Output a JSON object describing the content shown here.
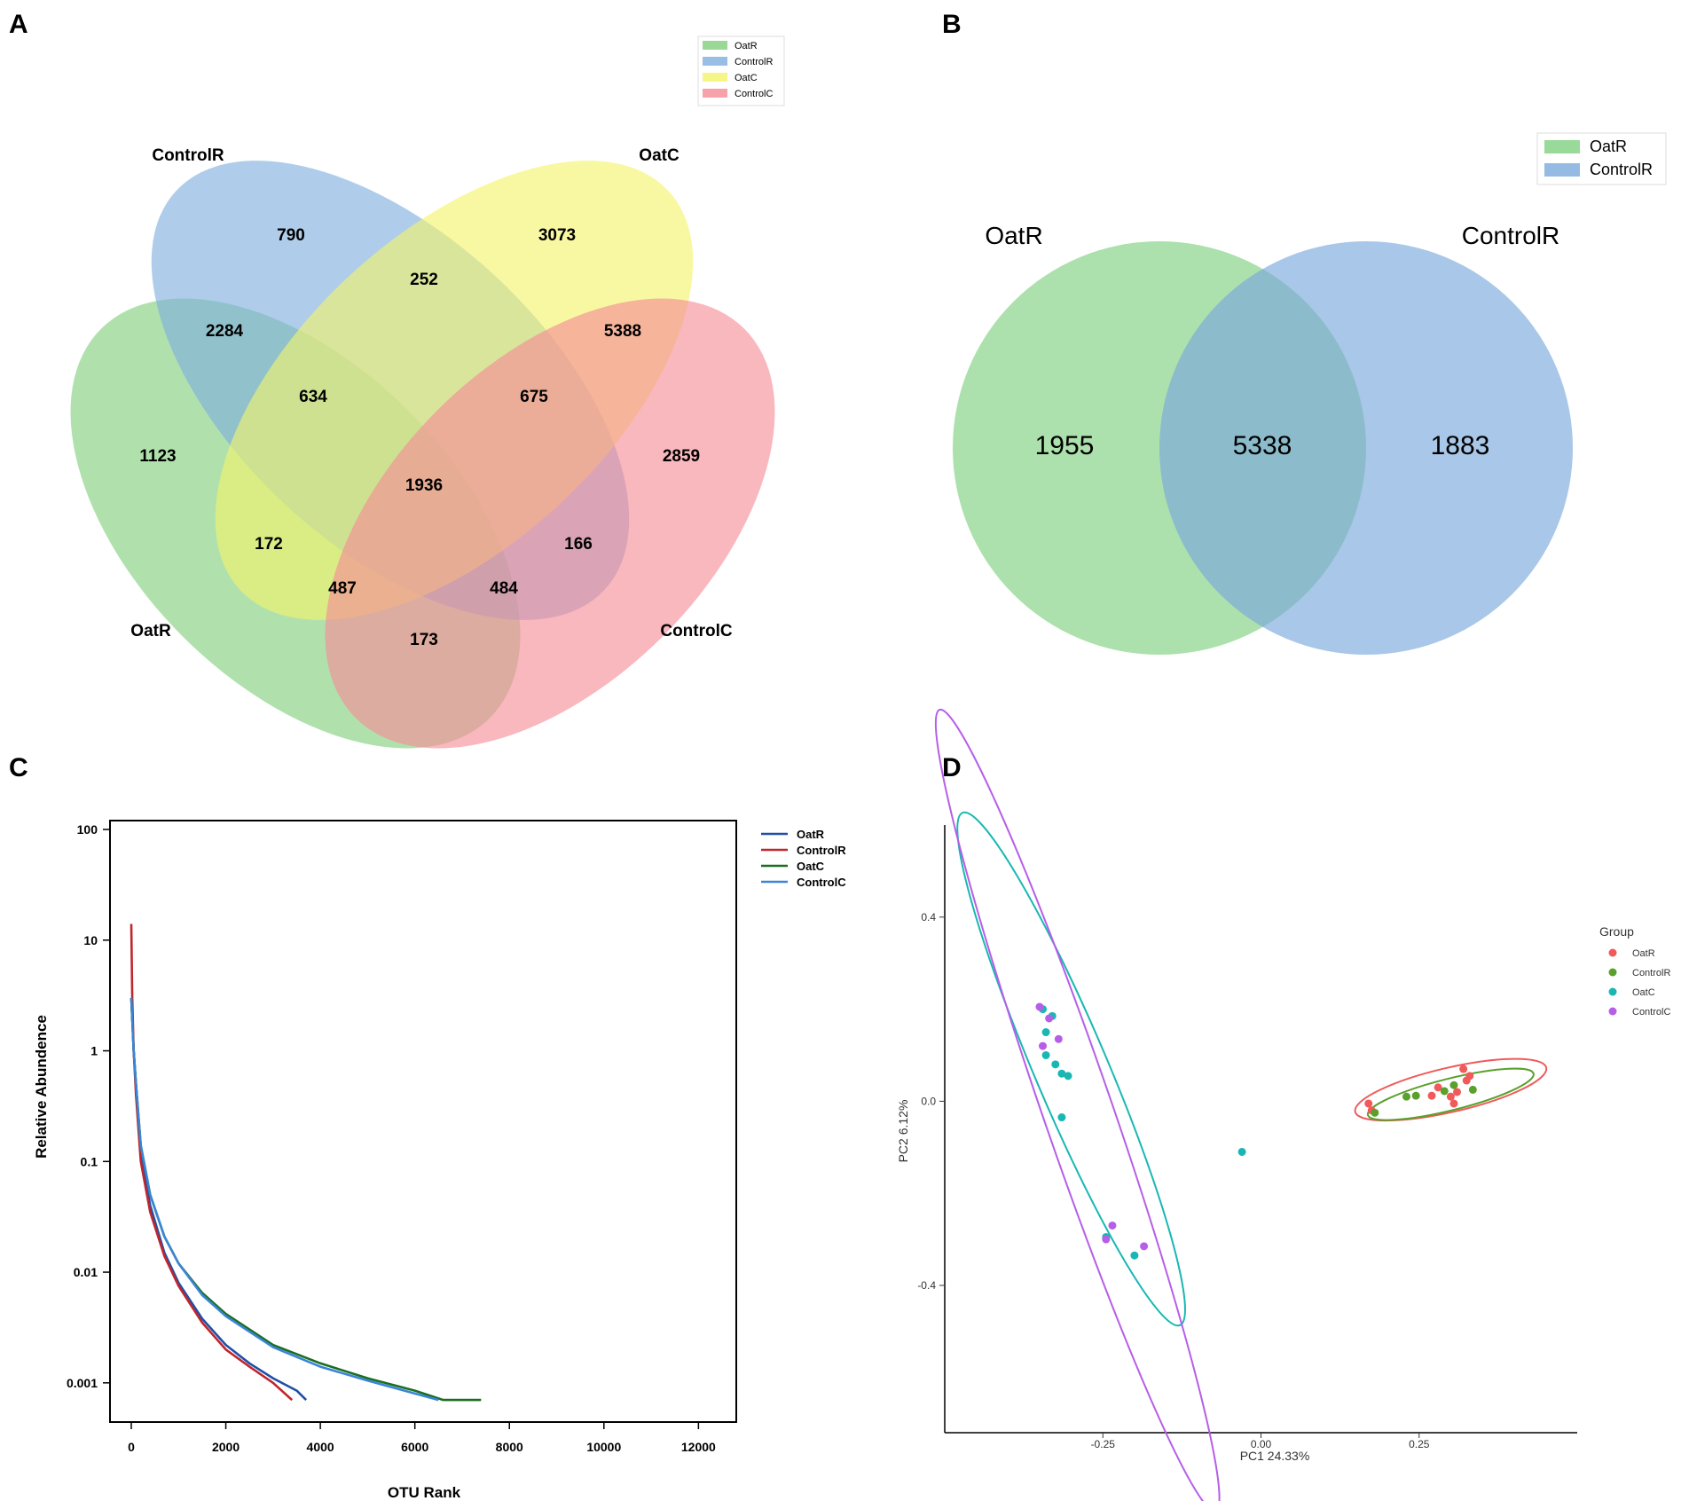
{
  "panels": {
    "A": {
      "letter": "A",
      "legend": [
        "OatR",
        "ControlR",
        "OatC",
        "ControlC"
      ],
      "colors": [
        "#7fcf7a",
        "#7eaedf",
        "#f3f36a",
        "#f58b96"
      ],
      "set_labels": [
        "ControlR",
        "OatC",
        "OatR",
        "ControlC"
      ],
      "counts": {
        "ControlR_only": "790",
        "OatC_only": "3073",
        "OatR_only": "1123",
        "ControlC_only": "2859",
        "ControlR_OatC": "252",
        "OatR_ControlR": "2284",
        "OatC_ControlC": "5388",
        "OatR_ControlR_OatC": "634",
        "ControlR_OatC_ControlC": "675",
        "all_four": "1936",
        "OatR_OatC": "172",
        "ControlR_ControlC": "166",
        "OatR_OatC_ControlC": "487",
        "OatR_ControlR_ControlC": "484",
        "OatR_ControlC": "173"
      }
    },
    "B": {
      "letter": "B",
      "legend": [
        "OatR",
        "ControlR"
      ],
      "colors": [
        "#7fd080",
        "#7ba9dc"
      ],
      "set_labels": [
        "OatR",
        "ControlR"
      ],
      "counts": {
        "OatR_only": "1955",
        "shared": "5338",
        "ControlR_only": "1883"
      }
    },
    "C": {
      "letter": "C"
    },
    "D": {
      "letter": "D"
    }
  },
  "chart_data": [
    {
      "type": "line",
      "title": "",
      "xlabel": "OTU Rank",
      "ylabel": "Relative Abundence",
      "xlim": [
        0,
        12500
      ],
      "ylim_log10": [
        -3.25,
        2.0
      ],
      "yscale": "log",
      "x_ticks": [
        "0",
        "2000",
        "4000",
        "6000",
        "8000",
        "10000",
        "12000"
      ],
      "y_ticks": [
        "100",
        "10",
        "1",
        "0.1",
        "0.01",
        "0.001"
      ],
      "legend": [
        "OatR",
        "ControlR",
        "OatC",
        "ControlC"
      ],
      "series": [
        {
          "name": "OatR",
          "color": "#1f4fa8",
          "x": [
            0,
            50,
            100,
            200,
            400,
            700,
            1000,
            1500,
            2000,
            2500,
            3000,
            3500,
            3700
          ],
          "y": [
            3,
            1,
            0.5,
            0.12,
            0.04,
            0.015,
            0.008,
            0.0038,
            0.0022,
            0.0015,
            0.0011,
            0.00085,
            0.0007
          ]
        },
        {
          "name": "ControlR",
          "color": "#c0262d",
          "x": [
            0,
            20,
            50,
            100,
            200,
            400,
            700,
            1000,
            1500,
            2000,
            2500,
            3000,
            3400
          ],
          "y": [
            14,
            3,
            1,
            0.4,
            0.1,
            0.035,
            0.014,
            0.0075,
            0.0035,
            0.002,
            0.0014,
            0.001,
            0.0007
          ]
        },
        {
          "name": "OatC",
          "color": "#1a6e23",
          "x": [
            0,
            50,
            100,
            200,
            400,
            700,
            1000,
            1500,
            2000,
            3000,
            4000,
            5000,
            6000,
            6600,
            7400
          ],
          "y": [
            3,
            1,
            0.5,
            0.14,
            0.05,
            0.021,
            0.012,
            0.0065,
            0.0042,
            0.0022,
            0.0015,
            0.0011,
            0.00085,
            0.0007,
            0.0007
          ]
        },
        {
          "name": "ControlC",
          "color": "#3a85d6",
          "x": [
            0,
            50,
            100,
            200,
            400,
            700,
            1000,
            1500,
            2000,
            3000,
            4000,
            5000,
            6000,
            6500
          ],
          "y": [
            3,
            1,
            0.5,
            0.14,
            0.05,
            0.021,
            0.012,
            0.0062,
            0.004,
            0.0021,
            0.0014,
            0.00105,
            0.0008,
            0.0007
          ]
        }
      ]
    },
    {
      "type": "scatter",
      "title": "",
      "xlabel": "PC1 24.33%",
      "ylabel": "PC2 6.12%",
      "xlim": [
        -0.5,
        0.5
      ],
      "ylim": [
        -0.72,
        0.6
      ],
      "x_ticks": [
        "-0.25",
        "0.00",
        "0.25"
      ],
      "y_ticks": [
        "0.4",
        "0.0",
        "-0.4"
      ],
      "legend_title": "Group",
      "legend": [
        "OatR",
        "ControlR",
        "OatC",
        "ControlC"
      ],
      "series": [
        {
          "name": "OatR",
          "color": "#f05a5a",
          "points": [
            [
              0.17,
              -0.005
            ],
            [
              0.175,
              -0.02
            ],
            [
              0.27,
              0.012
            ],
            [
              0.28,
              0.03
            ],
            [
              0.3,
              0.01
            ],
            [
              0.305,
              -0.005
            ],
            [
              0.32,
              0.07
            ],
            [
              0.325,
              0.045
            ],
            [
              0.33,
              0.055
            ],
            [
              0.31,
              0.02
            ]
          ],
          "ellipse": {
            "cx": 0.3,
            "cy": 0.025,
            "rx": 0.155,
            "ry": 0.035,
            "angle_deg": -13
          }
        },
        {
          "name": "ControlR",
          "color": "#5aa02c",
          "points": [
            [
              0.18,
              -0.025
            ],
            [
              0.23,
              0.01
            ],
            [
              0.245,
              0.012
            ],
            [
              0.29,
              0.022
            ],
            [
              0.305,
              0.035
            ],
            [
              0.335,
              0.025
            ]
          ],
          "ellipse": {
            "cx": 0.3,
            "cy": 0.015,
            "rx": 0.135,
            "ry": 0.025,
            "angle_deg": -14
          }
        },
        {
          "name": "OatC",
          "color": "#19b7b3",
          "points": [
            [
              -0.345,
              0.2
            ],
            [
              -0.33,
              0.185
            ],
            [
              -0.34,
              0.15
            ],
            [
              -0.34,
              0.1
            ],
            [
              -0.325,
              0.08
            ],
            [
              -0.315,
              0.06
            ],
            [
              -0.305,
              0.055
            ],
            [
              -0.315,
              -0.035
            ],
            [
              -0.245,
              -0.295
            ],
            [
              -0.2,
              -0.335
            ],
            [
              -0.03,
              -0.11
            ]
          ],
          "ellipse": {
            "cx": -0.3,
            "cy": 0.07,
            "rx": 0.44,
            "ry": 0.058,
            "angle_deg": 67
          }
        },
        {
          "name": "ControlC",
          "color": "#b65ee8",
          "points": [
            [
              -0.35,
              0.205
            ],
            [
              -0.345,
              0.12
            ],
            [
              -0.335,
              0.18
            ],
            [
              -0.32,
              0.135
            ],
            [
              -0.245,
              -0.3
            ],
            [
              -0.235,
              -0.27
            ],
            [
              -0.185,
              -0.315
            ]
          ],
          "ellipse": {
            "cx": -0.29,
            "cy": -0.02,
            "rx": 0.67,
            "ry": 0.055,
            "angle_deg": 71
          }
        }
      ]
    }
  ]
}
